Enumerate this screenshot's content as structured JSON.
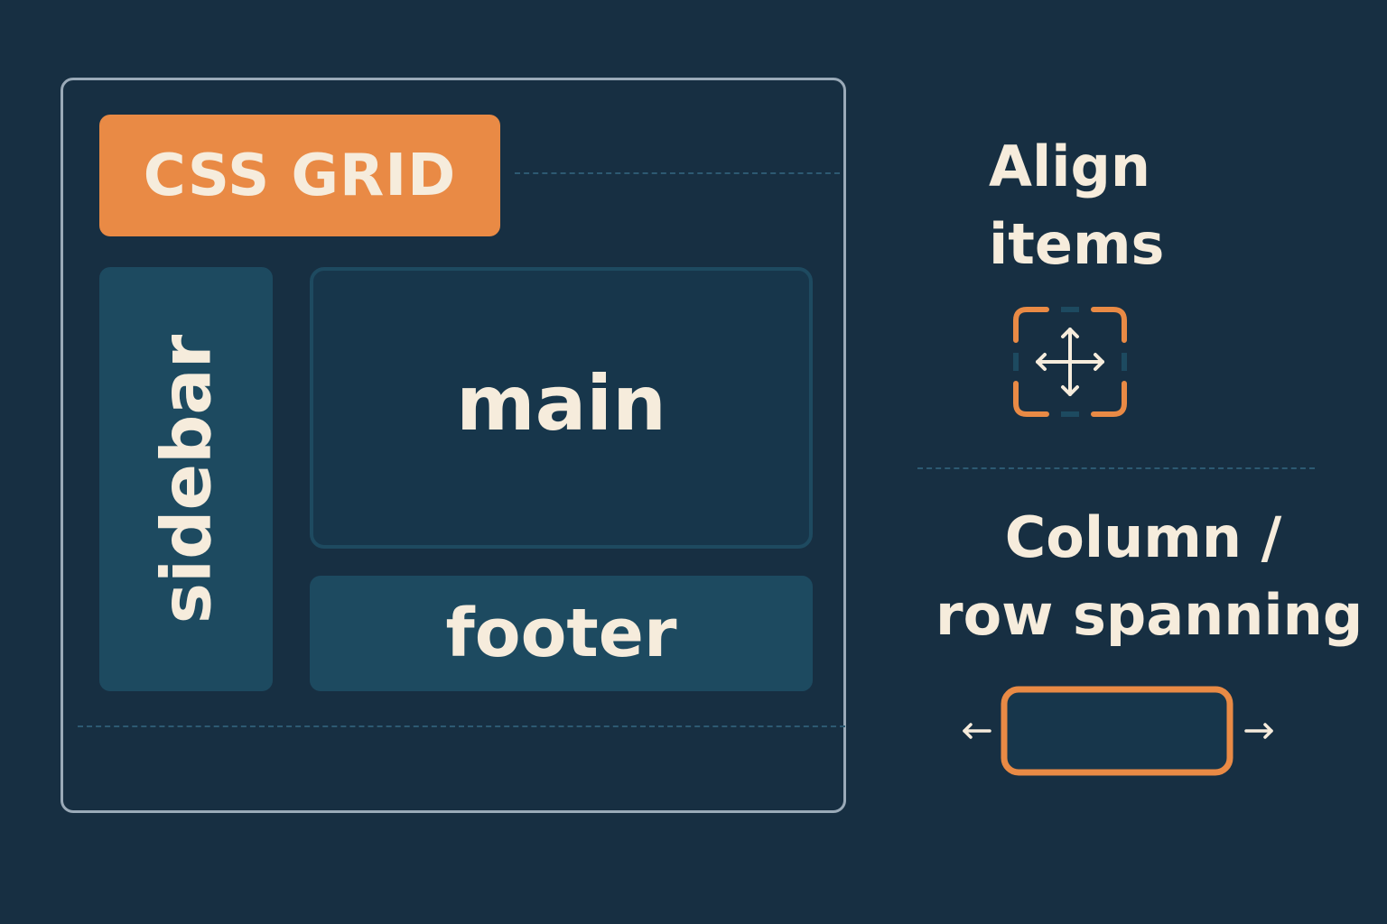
{
  "diagram": {
    "title": "CSS GRID",
    "areas": {
      "sidebar": "sidebar",
      "main": "main",
      "footer": "footer"
    }
  },
  "features": {
    "align_items": {
      "line1": "Align",
      "line2": "items",
      "icon": "move-arrows-icon"
    },
    "spanning": {
      "line1": "Column /",
      "line2": "row spanning",
      "icon": "span-arrows-icon"
    }
  },
  "colors": {
    "background": "#172f42",
    "accent": "#e98a45",
    "cell": "#1d4a60",
    "text": "#f6ecdc",
    "frame": "#9aaab8"
  }
}
